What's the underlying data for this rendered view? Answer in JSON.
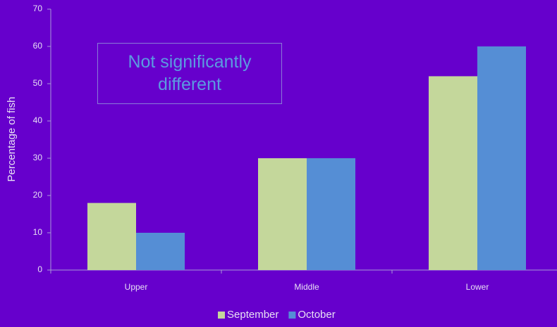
{
  "chart_data": {
    "type": "bar",
    "y_label": "Percentage of fish",
    "annotation": "Not significantly different",
    "categories": [
      "Upper",
      "Middle",
      "Lower"
    ],
    "series": [
      {
        "name": "September",
        "color": "#c4d79b",
        "values": [
          18,
          30,
          52
        ]
      },
      {
        "name": "October",
        "color": "#558ed5",
        "values": [
          10,
          30,
          60
        ]
      }
    ],
    "ylim": [
      0,
      70
    ],
    "yticks": [
      0,
      10,
      20,
      30,
      40,
      50,
      60,
      70
    ],
    "legend": "bottom"
  }
}
